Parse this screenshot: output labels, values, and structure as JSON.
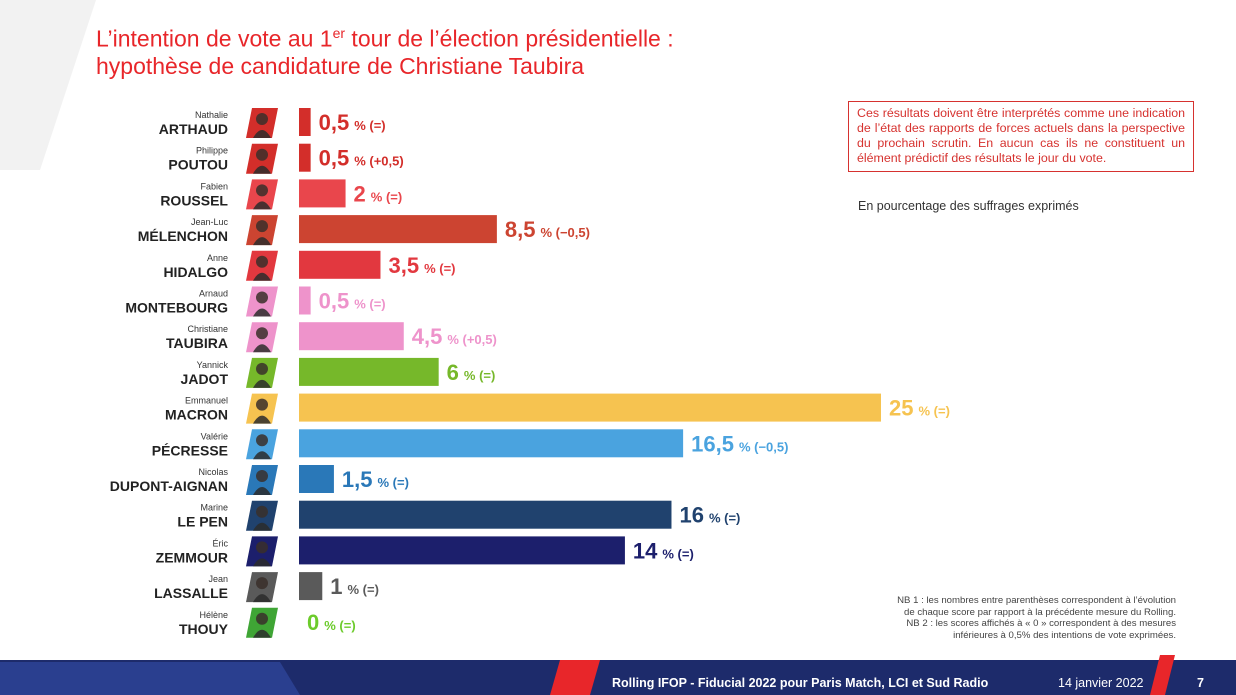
{
  "title": {
    "line1_pre": "L’intention de vote au 1",
    "line1_sup": "er",
    "line1_post": " tour de l’élection présidentielle :",
    "line2": "hypothèse de candidature de Christiane Taubira"
  },
  "note_box": "Ces résultats doivent être interprétés comme une indication de l’état des rapports de forces actuels dans la perspective du prochain scrutin. En aucun cas ils ne constituent un élément prédictif des résultats le jour du vote.",
  "subnote": "En pourcentage des suffrages exprimés",
  "footnotes": {
    "nb1_line1": "NB 1 : les nombres entre parenthèses correspondent à l’évolution",
    "nb1_line2": "de chaque score par rapport à la précédente mesure du Rolling.",
    "nb2_line1": "NB 2 : les scores affichés à « 0 » correspondent à des mesures",
    "nb2_line2": "inférieures à 0,5% des intentions de vote exprimées."
  },
  "footer": {
    "source": "Rolling IFOP - Fiducial 2022 pour Paris Match, LCI et Sud Radio",
    "date": "14 janvier 2022",
    "page": "7"
  },
  "colors": {
    "accent": "#e8262a",
    "footer_bg": "#1d2b6b"
  },
  "chart_data": {
    "type": "bar",
    "orientation": "horizontal",
    "unit_label": "%",
    "candidates": [
      {
        "first_name": "Nathalie",
        "last_name": "ARTHAUD",
        "value": 0.5,
        "value_label": "0,5",
        "change": "(=)",
        "color": "#d32e2a",
        "avatar_bg": "#d32e2a"
      },
      {
        "first_name": "Philippe",
        "last_name": "POUTOU",
        "value": 0.5,
        "value_label": "0,5",
        "change": "(+0,5)",
        "color": "#d32e2a",
        "avatar_bg": "#d32e2a"
      },
      {
        "first_name": "Fabien",
        "last_name": "ROUSSEL",
        "value": 2,
        "value_label": "2",
        "change": "(=)",
        "color": "#e9464c",
        "avatar_bg": "#e9464c"
      },
      {
        "first_name": "Jean-Luc",
        "last_name": "MÉLENCHON",
        "value": 8.5,
        "value_label": "8,5",
        "change": "(−0,5)",
        "color": "#cc4431",
        "avatar_bg": "#cc4431"
      },
      {
        "first_name": "Anne",
        "last_name": "HIDALGO",
        "value": 3.5,
        "value_label": "3,5",
        "change": "(=)",
        "color": "#e2383f",
        "avatar_bg": "#e2383f"
      },
      {
        "first_name": "Arnaud",
        "last_name": "MONTEBOURG",
        "value": 0.5,
        "value_label": "0,5",
        "change": "(=)",
        "color": "#ee93cb",
        "avatar_bg": "#ee93cb"
      },
      {
        "first_name": "Christiane",
        "last_name": "TAUBIRA",
        "value": 4.5,
        "value_label": "4,5",
        "change": "(+0,5)",
        "color": "#ee93cb",
        "avatar_bg": "#ee93cb"
      },
      {
        "first_name": "Yannick",
        "last_name": "JADOT",
        "value": 6,
        "value_label": "6",
        "change": "(=)",
        "color": "#76b82a",
        "avatar_bg": "#76b82a"
      },
      {
        "first_name": "Emmanuel",
        "last_name": "MACRON",
        "value": 25,
        "value_label": "25",
        "change": "(=)",
        "color": "#f6c350",
        "avatar_bg": "#f6c350"
      },
      {
        "first_name": "Valérie",
        "last_name": "PÉCRESSE",
        "value": 16.5,
        "value_label": "16,5",
        "change": "(−0,5)",
        "color": "#4aa3df",
        "avatar_bg": "#4aa3df"
      },
      {
        "first_name": "Nicolas",
        "last_name": "DUPONT-AIGNAN",
        "value": 1.5,
        "value_label": "1,5",
        "change": "(=)",
        "color": "#2a78b8",
        "avatar_bg": "#2a78b8"
      },
      {
        "first_name": "Marine",
        "last_name": "LE PEN",
        "value": 16,
        "value_label": "16",
        "change": "(=)",
        "color": "#20426e",
        "avatar_bg": "#20426e"
      },
      {
        "first_name": "Éric",
        "last_name": "ZEMMOUR",
        "value": 14,
        "value_label": "14",
        "change": "(=)",
        "color": "#1c1f6c",
        "avatar_bg": "#1c1f6c"
      },
      {
        "first_name": "Jean",
        "last_name": "LASSALLE",
        "value": 1,
        "value_label": "1",
        "change": "(=)",
        "color": "#5a5a5a",
        "avatar_bg": "#5a5a5a"
      },
      {
        "first_name": "Hélène",
        "last_name": "THOUY",
        "value": 0,
        "value_label": "0",
        "change": "(=)",
        "color": "#6ccb2b",
        "avatar_bg": "#3fa535"
      }
    ],
    "xlim": [
      0,
      25
    ]
  }
}
